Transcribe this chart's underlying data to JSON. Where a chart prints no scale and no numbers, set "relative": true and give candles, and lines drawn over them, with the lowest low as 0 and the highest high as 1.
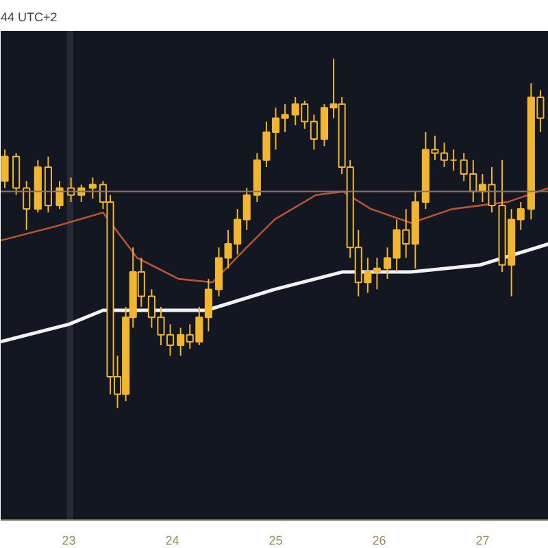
{
  "chart_data": {
    "type": "candlestick",
    "relative": true,
    "grid": false,
    "annotations": [
      "44 UTC+2"
    ],
    "color": "#f2b531",
    "xlim": [
      22.34,
      27.64
    ],
    "xticks": [
      23,
      24,
      25,
      26,
      27
    ],
    "x": [
      22.38,
      22.49,
      22.59,
      22.7,
      22.8,
      22.91,
      23.02,
      23.12,
      23.23,
      23.33,
      23.4,
      23.47,
      23.55,
      23.62,
      23.7,
      23.8,
      23.89,
      23.98,
      24.08,
      24.17,
      24.26,
      24.35,
      24.45,
      24.54,
      24.63,
      24.72,
      24.82,
      24.91,
      25.0,
      25.09,
      25.19,
      25.28,
      25.37,
      25.47,
      25.56,
      25.64,
      25.72,
      25.8,
      25.89,
      25.98,
      26.08,
      26.17,
      26.26,
      26.35,
      26.45,
      26.54,
      26.63,
      26.72,
      26.82,
      26.91,
      27.0,
      27.09,
      27.19,
      27.28,
      27.37,
      27.47,
      27.56
    ],
    "ohlc": [
      [
        0.65,
        0.74,
        0.63,
        0.72
      ],
      [
        0.72,
        0.73,
        0.61,
        0.63
      ],
      [
        0.63,
        0.65,
        0.51,
        0.57
      ],
      [
        0.57,
        0.71,
        0.56,
        0.69
      ],
      [
        0.69,
        0.72,
        0.56,
        0.58
      ],
      [
        0.58,
        0.65,
        0.57,
        0.63
      ],
      [
        0.63,
        0.66,
        0.59,
        0.61
      ],
      [
        0.61,
        0.64,
        0.59,
        0.63
      ],
      [
        0.63,
        0.66,
        0.6,
        0.64
      ],
      [
        0.64,
        0.65,
        0.57,
        0.59
      ],
      [
        0.59,
        0.61,
        0.04,
        0.09
      ],
      [
        0.09,
        0.15,
        0,
        0.04
      ],
      [
        0.04,
        0.29,
        0.02,
        0.26
      ],
      [
        0.26,
        0.46,
        0.23,
        0.39
      ],
      [
        0.39,
        0.43,
        0.29,
        0.32
      ],
      [
        0.32,
        0.34,
        0.23,
        0.26
      ],
      [
        0.26,
        0.29,
        0.18,
        0.21
      ],
      [
        0.21,
        0.24,
        0.15,
        0.18
      ],
      [
        0.18,
        0.23,
        0.15,
        0.21
      ],
      [
        0.21,
        0.24,
        0.17,
        0.19
      ],
      [
        0.19,
        0.29,
        0.18,
        0.26
      ],
      [
        0.26,
        0.37,
        0.22,
        0.34
      ],
      [
        0.34,
        0.46,
        0.32,
        0.43
      ],
      [
        0.43,
        0.51,
        0.4,
        0.47
      ],
      [
        0.47,
        0.57,
        0.44,
        0.54
      ],
      [
        0.54,
        0.63,
        0.51,
        0.61
      ],
      [
        0.61,
        0.73,
        0.59,
        0.71
      ],
      [
        0.71,
        0.82,
        0.69,
        0.79
      ],
      [
        0.79,
        0.86,
        0.74,
        0.83
      ],
      [
        0.83,
        0.87,
        0.79,
        0.84
      ],
      [
        0.84,
        0.89,
        0.81,
        0.87
      ],
      [
        0.87,
        0.88,
        0.8,
        0.82
      ],
      [
        0.82,
        0.84,
        0.74,
        0.77
      ],
      [
        0.77,
        0.87,
        0.75,
        0.86
      ],
      [
        0.86,
        1,
        0.83,
        0.87
      ],
      [
        0.87,
        0.89,
        0.67,
        0.69
      ],
      [
        0.69,
        0.71,
        0.43,
        0.46
      ],
      [
        0.46,
        0.51,
        0.32,
        0.36
      ],
      [
        0.36,
        0.43,
        0.33,
        0.39
      ],
      [
        0.39,
        0.43,
        0.34,
        0.4
      ],
      [
        0.4,
        0.46,
        0.37,
        0.43
      ],
      [
        0.43,
        0.54,
        0.39,
        0.51
      ],
      [
        0.51,
        0.57,
        0.43,
        0.47
      ],
      [
        0.47,
        0.62,
        0.4,
        0.59
      ],
      [
        0.59,
        0.79,
        0.57,
        0.74
      ],
      [
        0.74,
        0.78,
        0.71,
        0.73
      ],
      [
        0.73,
        0.76,
        0.69,
        0.71
      ],
      [
        0.71,
        0.74,
        0.68,
        0.71
      ],
      [
        0.71,
        0.73,
        0.65,
        0.67
      ],
      [
        0.67,
        0.71,
        0.59,
        0.62
      ],
      [
        0.62,
        0.67,
        0.59,
        0.64
      ],
      [
        0.64,
        0.69,
        0.56,
        0.58
      ],
      [
        0.58,
        0.71,
        0.39,
        0.41
      ],
      [
        0.41,
        0.57,
        0.32,
        0.54
      ],
      [
        0.54,
        0.59,
        0.51,
        0.57
      ],
      [
        0.57,
        0.93,
        0.54,
        0.89
      ],
      [
        0.89,
        0.91,
        0.79,
        0.83
      ]
    ],
    "series": [
      {
        "type": "line",
        "color": "#b8532f",
        "x": [
          22.34,
          22.87,
          23.33,
          23.66,
          24.06,
          24.39,
          24.72,
          24.99,
          25.39,
          25.65,
          25.92,
          26.31,
          26.71,
          27.24,
          27.64
        ],
        "values": [
          0.48,
          0.52,
          0.56,
          0.43,
          0.37,
          0.36,
          0.46,
          0.54,
          0.61,
          0.62,
          0.57,
          0.53,
          0.57,
          0.59,
          0.63
        ]
      },
      {
        "type": "line",
        "color": "#f2f2f2",
        "x": [
          22.34,
          23.0,
          23.33,
          23.66,
          24.33,
          24.99,
          25.65,
          26.31,
          26.98,
          27.64
        ],
        "values": [
          0.19,
          0.24,
          0.28,
          0.28,
          0.28,
          0.34,
          0.39,
          0.39,
          0.41,
          0.47
        ]
      }
    ],
    "ref_lines": [
      {
        "axis": "y",
        "value": 0.62,
        "label": null,
        "color": "#8a7468"
      }
    ],
    "bands": [
      {
        "axis": "x",
        "from": 22.98,
        "to": 23.04,
        "label": null,
        "color": "#2a2e39"
      }
    ]
  }
}
